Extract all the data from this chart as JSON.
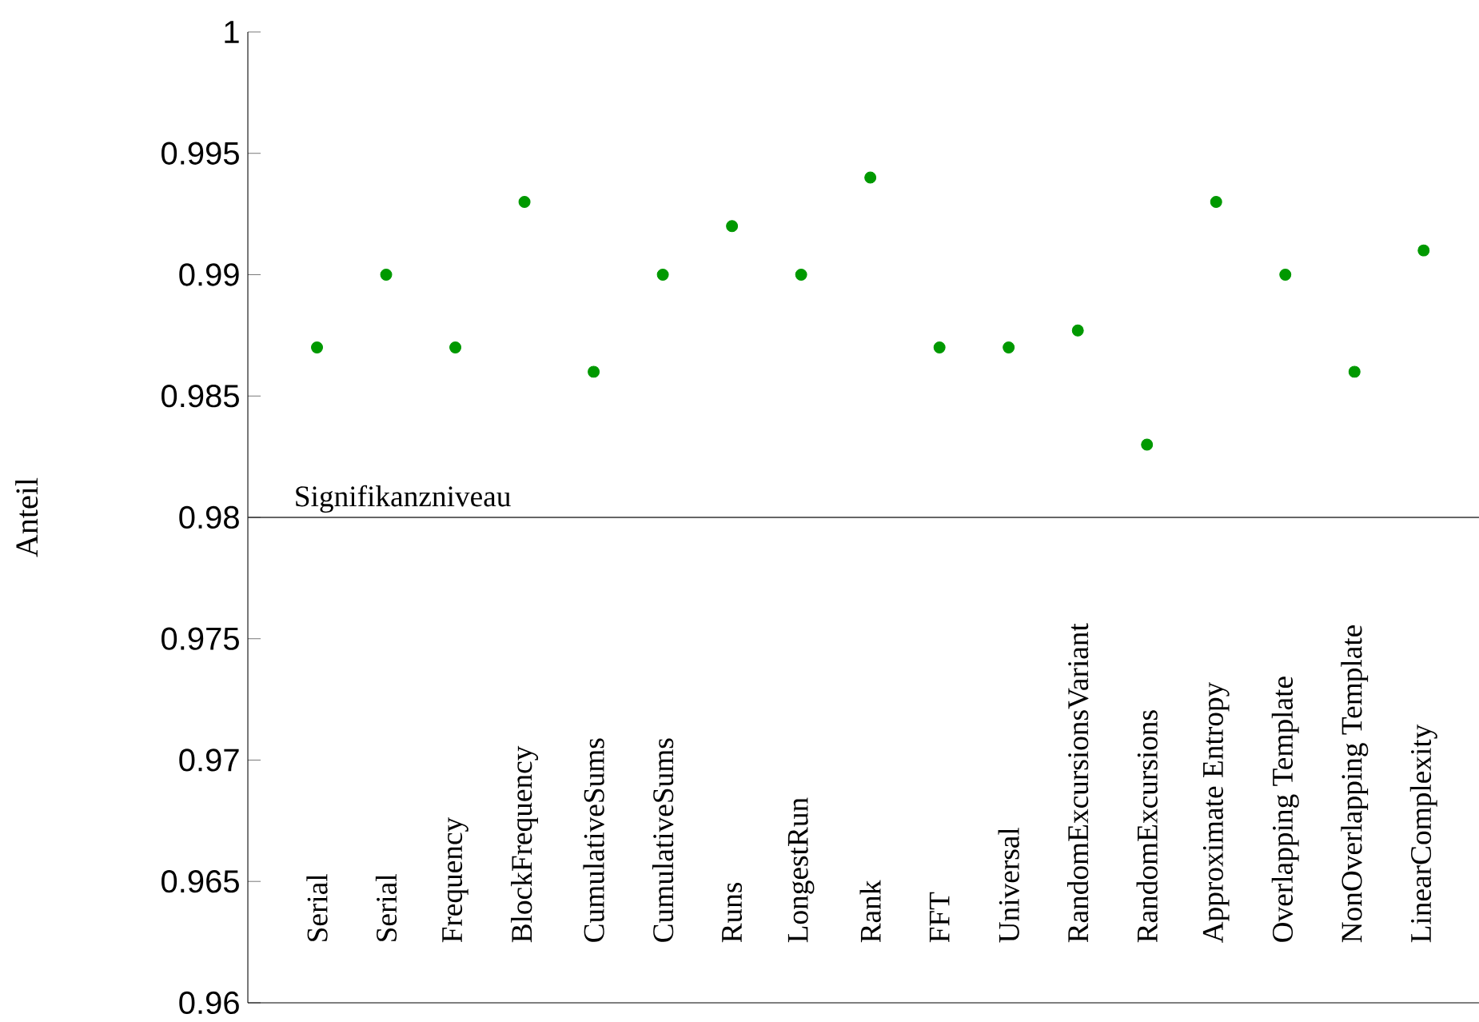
{
  "chart_data": {
    "type": "scatter",
    "ylabel": "Anteil",
    "categories": [
      "Serial",
      "Serial",
      "Frequency",
      "BlockFrequency",
      "CumulativeSums",
      "CumulativeSums",
      "Runs",
      "LongestRun",
      "Rank",
      "FFT",
      "Universal",
      "RandomExcursionsVariant",
      "RandomExcursions",
      "Approximate Entropy",
      "Overlapping Template",
      "NonOverlapping Template",
      "LinearComplexity"
    ],
    "values": [
      0.987,
      0.99,
      0.987,
      0.993,
      0.986,
      0.99,
      0.992,
      0.99,
      0.994,
      0.987,
      0.987,
      0.9877,
      0.983,
      0.993,
      0.99,
      0.986,
      0.991
    ],
    "color": "#009900",
    "marker": "circle",
    "ylim": [
      0.96,
      1
    ],
    "yticks": [
      0.96,
      0.965,
      0.97,
      0.975,
      0.98,
      0.985,
      0.99,
      0.995,
      1
    ],
    "ref_lines": [
      {
        "axis": "y",
        "value": 0.98,
        "label": "Signifikanzniveau"
      }
    ]
  }
}
